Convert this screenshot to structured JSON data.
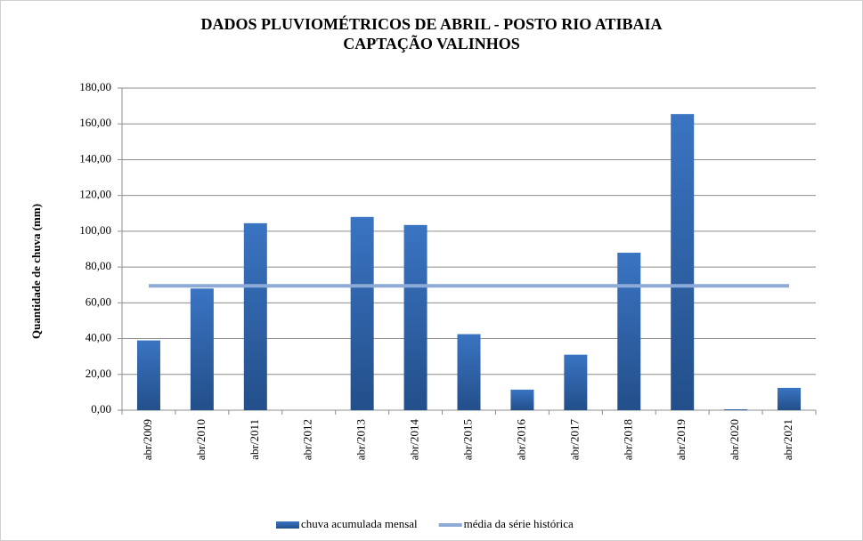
{
  "chart_data": {
    "type": "bar",
    "title": "DADOS PLUVIOMÉTRICOS DE ABRIL - POSTO RIO ATIBAIA CAPTAÇÃO VALINHOS",
    "y_label": "Quantidade de chuva (mm)",
    "categories": [
      "abr/2009",
      "abr/2010",
      "abr/2011",
      "abr/2012",
      "abr/2013",
      "abr/2014",
      "abr/2015",
      "abr/2016",
      "abr/2017",
      "abr/2018",
      "abr/2019",
      "abr/2020",
      "abr/2021"
    ],
    "series": [
      {
        "name": "chuva acumulada mensal",
        "type": "bar",
        "color": "#2f62a6",
        "values": [
          39,
          68,
          104.5,
          0,
          108,
          103.5,
          42.5,
          11.5,
          31,
          88,
          165.5,
          0.5,
          12.5
        ]
      },
      {
        "name": "média da série histórica",
        "type": "line",
        "color": "#8eaad6",
        "values": [
          69.5,
          69.5,
          69.5,
          69.5,
          69.5,
          69.5,
          69.5,
          69.5,
          69.5,
          69.5,
          69.5,
          69.5,
          69.5
        ]
      }
    ],
    "ylim": [
      0,
      180
    ],
    "yticks": [
      {
        "value": 0,
        "label": "0,00"
      },
      {
        "value": 20,
        "label": "20,00"
      },
      {
        "value": 40,
        "label": "40,00"
      },
      {
        "value": 60,
        "label": "60,00"
      },
      {
        "value": 80,
        "label": "80,00"
      },
      {
        "value": 100,
        "label": "100,00"
      },
      {
        "value": 120,
        "label": "120,00"
      },
      {
        "value": 140,
        "label": "140,00"
      },
      {
        "value": 160,
        "label": "160,00"
      },
      {
        "value": 180,
        "label": "180,00"
      }
    ],
    "grid": true,
    "legend": "bottom"
  }
}
